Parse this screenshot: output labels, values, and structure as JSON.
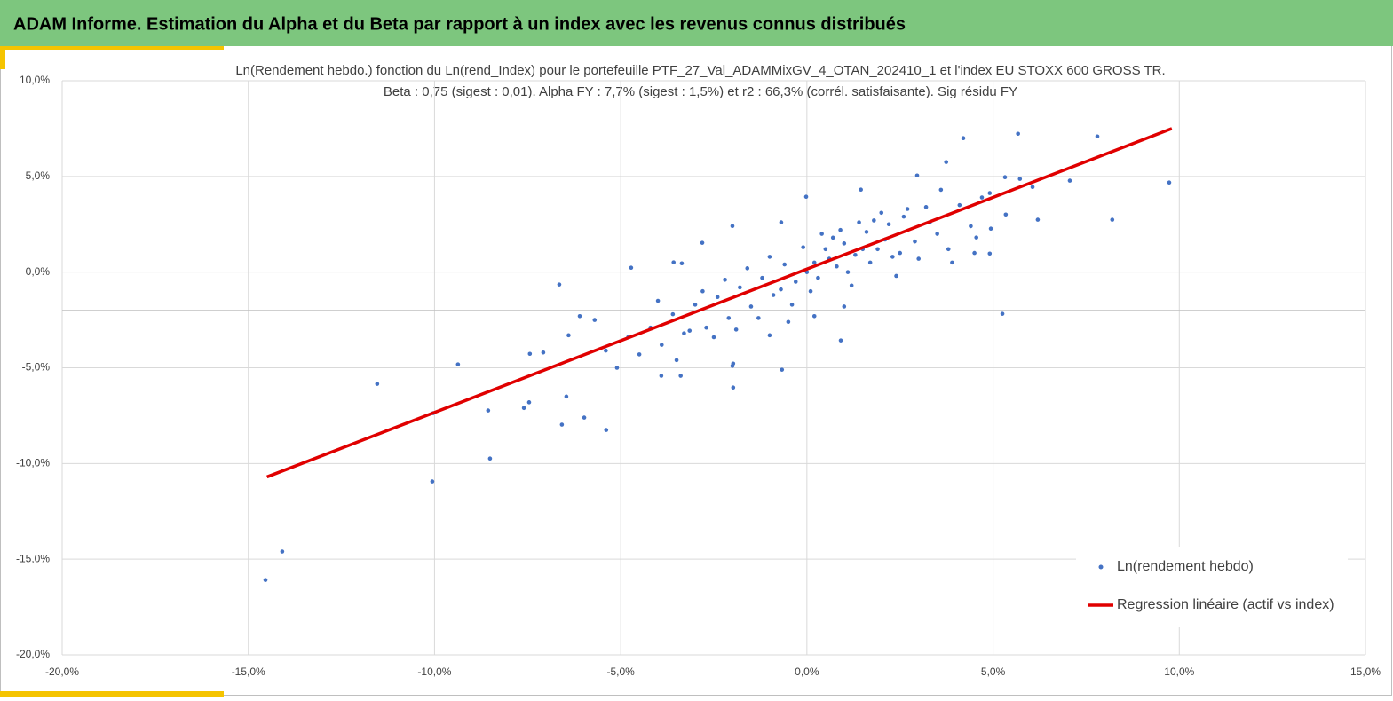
{
  "header": {
    "title": "ADAM Informe. Estimation du Alpha et du Beta par rapport à un index avec les revenus connus distribués"
  },
  "chart_data": {
    "type": "scatter",
    "title": "Ln(Rendement hebdo.) fonction du Ln(rend_Index) pour le portefeuille PTF_27_Val_ADAMMixGV_4_OTAN_202410_1 et l'index EU STOXX 600 GROSS TR.",
    "subtitle": "Beta : 0,75 (sigest : 0,01).  Alpha FY : 7,7% (sigest : 1,5%) et r2 : 66,3% (corrél. satisfaisante). Sig résidu FY",
    "xlim": [
      -20,
      15
    ],
    "ylim": [
      -20,
      10
    ],
    "xticks": [
      {
        "value": -20,
        "label": "-20,0%"
      },
      {
        "value": -15,
        "label": "-15,0%"
      },
      {
        "value": -10,
        "label": "-10,0%"
      },
      {
        "value": -5,
        "label": "-5,0%"
      },
      {
        "value": 0,
        "label": "0,0%"
      },
      {
        "value": 5,
        "label": "5,0%"
      },
      {
        "value": 10,
        "label": "10,0%"
      },
      {
        "value": 15,
        "label": "15,0%"
      }
    ],
    "yticks": [
      {
        "value": 10,
        "label": "10,0%"
      },
      {
        "value": 5,
        "label": "5,0%"
      },
      {
        "value": 0,
        "label": "0,0%"
      },
      {
        "value": -5,
        "label": "-5,0%"
      },
      {
        "value": -10,
        "label": "-10,0%"
      },
      {
        "value": -15,
        "label": "-15,0%"
      },
      {
        "value": -20,
        "label": "-20,0%"
      }
    ],
    "grid": true,
    "hline": -2,
    "legend": "lower right",
    "series": [
      {
        "name": "Ln(rendement hebdo)",
        "type": "scatter",
        "color": "#4472c4",
        "x": [
          -14.54,
          -14.09,
          -11.54,
          -10.04,
          -10.06,
          -9.37,
          -8.56,
          -8.51,
          -7.6,
          -7.46,
          -7.44,
          -7.08,
          -6.65,
          -6.58,
          -6.46,
          -5.98,
          -5.39,
          -4.72,
          -0.67,
          0.91,
          5.25,
          4.2,
          5.67,
          7.8,
          9.73,
          8.2,
          7.06,
          6.2,
          6.06,
          5.72,
          5.32,
          4.91,
          5.34,
          3.74,
          2.96,
          4.94,
          4.55,
          4.91,
          -3.36,
          -3.58,
          -2.81,
          -2.0,
          -0.69,
          -0.02,
          1.45,
          -3.91,
          -3.39,
          -1.98,
          -1.98,
          -3.15,
          0.2,
          0.5,
          0.8,
          1.0,
          1.3,
          1.6,
          1.9,
          2.2,
          2.5,
          -0.3,
          -0.6,
          -0.9,
          -1.2,
          -1.5,
          -1.8,
          -2.1,
          -2.4,
          -2.7,
          -3.0,
          -3.3,
          -3.6,
          -3.9,
          -4.2,
          -4.5,
          -4.8,
          -5.1,
          -5.4,
          -5.7,
          -6.1,
          -6.4,
          0.1,
          0.4,
          0.7,
          1.1,
          1.4,
          1.7,
          2.0,
          2.3,
          2.6,
          2.9,
          3.2,
          3.5,
          3.8,
          4.1,
          4.4,
          4.7,
          -0.1,
          -0.4,
          -0.7,
          -1.0,
          -1.3,
          -1.6,
          -1.9,
          -2.2,
          -2.5,
          -2.8,
          0.0,
          0.3,
          0.6,
          0.9,
          1.2,
          1.5,
          1.8,
          2.1,
          2.4,
          2.7,
          3.0,
          3.3,
          3.6,
          -3.5,
          -4.0,
          -2.0,
          -1.0,
          -0.5,
          0.2,
          1.0,
          3.9,
          4.5
        ],
        "values": [
          -16.09,
          -14.6,
          -5.84,
          -7.37,
          -10.94,
          -4.82,
          -7.23,
          -9.74,
          -7.1,
          -6.8,
          -4.27,
          -4.2,
          -0.65,
          -7.97,
          -6.5,
          -7.6,
          -8.25,
          0.23,
          -5.1,
          -3.57,
          -2.18,
          7.0,
          7.23,
          7.09,
          4.68,
          2.74,
          4.78,
          2.74,
          4.45,
          4.87,
          4.96,
          4.13,
          3.01,
          5.75,
          5.05,
          2.27,
          1.81,
          0.97,
          0.46,
          0.51,
          1.53,
          2.41,
          2.6,
          3.94,
          4.31,
          -5.42,
          -5.42,
          -6.03,
          -4.78,
          -3.06,
          0.5,
          1.2,
          0.3,
          1.5,
          0.9,
          2.1,
          1.2,
          2.5,
          1.0,
          -0.5,
          0.4,
          -1.2,
          -0.3,
          -1.8,
          -0.8,
          -2.4,
          -1.3,
          -2.9,
          -1.7,
          -3.2,
          -2.2,
          -3.8,
          -2.9,
          -4.3,
          -3.4,
          -5.0,
          -4.1,
          -2.5,
          -2.3,
          -3.3,
          -1.0,
          2.0,
          1.8,
          0.0,
          2.6,
          0.5,
          3.1,
          0.8,
          2.9,
          1.6,
          3.4,
          2.0,
          1.2,
          3.5,
          2.4,
          3.9,
          1.3,
          -1.7,
          -0.9,
          0.8,
          -2.4,
          0.2,
          -3.0,
          -0.4,
          -3.4,
          -1.0,
          0.0,
          -0.3,
          0.7,
          2.2,
          -0.7,
          1.2,
          2.7,
          1.7,
          -0.2,
          3.3,
          0.7,
          2.6,
          4.3,
          -4.6,
          -1.5,
          -4.9,
          -3.3,
          -2.6,
          -2.3,
          -1.8,
          0.5,
          1.0
        ]
      },
      {
        "name": "Regression linéaire (actif vs index)",
        "type": "line",
        "color": "#e00000",
        "x": [
          -14.5,
          9.8
        ],
        "values": [
          -10.7,
          7.5
        ]
      }
    ]
  }
}
